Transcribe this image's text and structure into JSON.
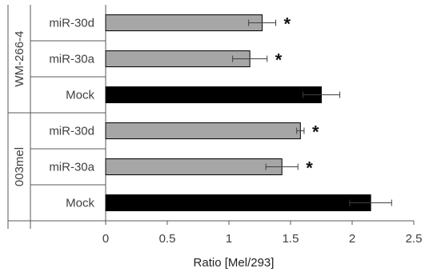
{
  "chart_data": {
    "type": "bar",
    "orientation": "horizontal",
    "xlabel": "Ratio [Mel/293]",
    "xlim": [
      0,
      2.5
    ],
    "xticks": [
      "0",
      "0.5",
      "1",
      "1.5",
      "2",
      "2.5"
    ],
    "grid": false,
    "groups": [
      {
        "name": "WM-266-4",
        "bars": [
          {
            "category": "miR-30d",
            "value": 1.27,
            "error": 0.11,
            "significant": true,
            "marker": "*",
            "color": "#a6a6a6"
          },
          {
            "category": "miR-30a",
            "value": 1.17,
            "error": 0.14,
            "significant": true,
            "marker": "*",
            "color": "#a6a6a6"
          },
          {
            "category": "Mock",
            "value": 1.75,
            "error": 0.15,
            "significant": false,
            "marker": "",
            "color": "#000000"
          }
        ]
      },
      {
        "name": "003mel",
        "bars": [
          {
            "category": "miR-30d",
            "value": 1.58,
            "error": 0.03,
            "significant": true,
            "marker": "*",
            "color": "#a6a6a6"
          },
          {
            "category": "miR-30a",
            "value": 1.43,
            "error": 0.13,
            "significant": true,
            "marker": "*",
            "color": "#a6a6a6"
          },
          {
            "category": "Mock",
            "value": 2.15,
            "error": 0.17,
            "significant": false,
            "marker": "",
            "color": "#000000"
          }
        ]
      }
    ]
  }
}
